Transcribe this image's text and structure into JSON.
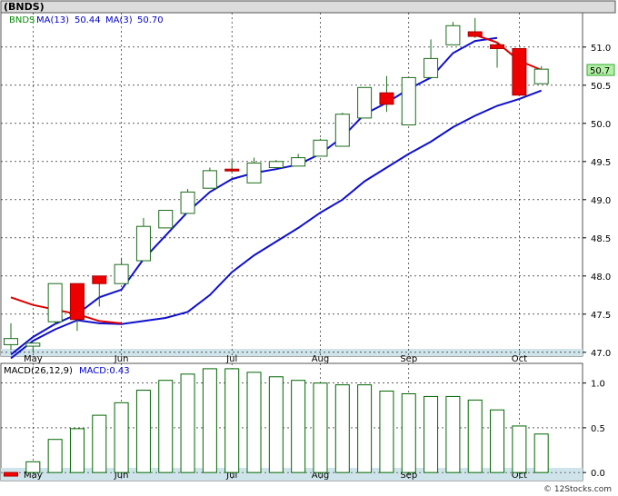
{
  "chart_data": [
    {
      "type": "candlestick",
      "title": "(BNDS)",
      "legend": [
        {
          "text": "BNDS",
          "color": "#0a8a0a"
        },
        {
          "text": "MA(13)",
          "color": "#0000cc"
        },
        {
          "text": "50.44",
          "color": "#0000cc"
        },
        {
          "text": "MA(3)",
          "color": "#0000cc"
        },
        {
          "text": "50.70",
          "color": "#0000cc"
        }
      ],
      "ylim": [
        46.95,
        51.45
      ],
      "yticks": [
        "47.0",
        "47.5",
        "48.0",
        "48.5",
        "49.0",
        "49.5",
        "50.0",
        "50.5",
        "51.0"
      ],
      "ytick_values": [
        47.0,
        47.5,
        48.0,
        48.5,
        49.0,
        49.5,
        50.0,
        50.5,
        51.0
      ],
      "xlabels": [
        {
          "label": "May",
          "index": 1
        },
        {
          "label": "Jun",
          "index": 5
        },
        {
          "label": "Jul",
          "index": 10
        },
        {
          "label": "Aug",
          "index": 14
        },
        {
          "label": "Sep",
          "index": 18
        },
        {
          "label": "Oct",
          "index": 23
        }
      ],
      "last_price_label": "50.7",
      "last_price_value": 50.7,
      "candles": [
        {
          "o": 47.1,
          "h": 47.38,
          "l": 47.03,
          "c": 47.18
        },
        {
          "o": 47.08,
          "h": 47.13,
          "l": 47.0,
          "c": 47.12
        },
        {
          "o": 47.4,
          "h": 47.9,
          "l": 47.36,
          "c": 47.9
        },
        {
          "o": 47.9,
          "h": 47.9,
          "l": 47.28,
          "c": 47.43
        },
        {
          "o": 48.0,
          "h": 48.0,
          "l": 47.6,
          "c": 47.9
        },
        {
          "o": 47.9,
          "h": 48.24,
          "l": 47.9,
          "c": 48.15
        },
        {
          "o": 48.2,
          "h": 48.76,
          "l": 48.2,
          "c": 48.65
        },
        {
          "o": 48.63,
          "h": 48.86,
          "l": 48.63,
          "c": 48.86
        },
        {
          "o": 48.82,
          "h": 49.14,
          "l": 48.82,
          "c": 49.1
        },
        {
          "o": 49.15,
          "h": 49.42,
          "l": 49.15,
          "c": 49.38
        },
        {
          "o": 49.4,
          "h": 49.52,
          "l": 49.35,
          "c": 49.38
        },
        {
          "o": 49.22,
          "h": 49.55,
          "l": 49.22,
          "c": 49.48
        },
        {
          "o": 49.42,
          "h": 49.52,
          "l": 49.42,
          "c": 49.5
        },
        {
          "o": 49.44,
          "h": 49.6,
          "l": 49.44,
          "c": 49.55
        },
        {
          "o": 49.57,
          "h": 49.8,
          "l": 49.57,
          "c": 49.78
        },
        {
          "o": 49.7,
          "h": 50.14,
          "l": 49.7,
          "c": 50.12
        },
        {
          "o": 50.07,
          "h": 50.47,
          "l": 50.07,
          "c": 50.47
        },
        {
          "o": 50.4,
          "h": 50.62,
          "l": 50.15,
          "c": 50.25
        },
        {
          "o": 49.98,
          "h": 50.6,
          "l": 49.98,
          "c": 50.6
        },
        {
          "o": 50.6,
          "h": 51.1,
          "l": 50.6,
          "c": 50.85
        },
        {
          "o": 51.03,
          "h": 51.33,
          "l": 51.03,
          "c": 51.28
        },
        {
          "o": 51.2,
          "h": 51.38,
          "l": 51.12,
          "c": 51.14
        },
        {
          "o": 51.03,
          "h": 51.07,
          "l": 50.73,
          "c": 50.98
        },
        {
          "o": 50.98,
          "h": 50.98,
          "l": 50.37,
          "c": 50.37
        },
        {
          "o": 50.52,
          "h": 50.75,
          "l": 50.52,
          "c": 50.71
        }
      ],
      "ma13_points": [
        {
          "i": 0,
          "v": 46.97
        },
        {
          "i": 1,
          "v": 47.2
        },
        {
          "i": 2,
          "v": 47.37
        },
        {
          "i": 3,
          "v": 47.5
        },
        {
          "i": 4,
          "v": 47.72
        },
        {
          "i": 5,
          "v": 47.82
        },
        {
          "i": 6,
          "v": 48.22
        },
        {
          "i": 7,
          "v": 48.53
        },
        {
          "i": 8,
          "v": 48.84
        },
        {
          "i": 9,
          "v": 49.1
        },
        {
          "i": 10,
          "v": 49.27
        },
        {
          "i": 11,
          "v": 49.35
        },
        {
          "i": 12,
          "v": 49.4
        },
        {
          "i": 13,
          "v": 49.46
        },
        {
          "i": 14,
          "v": 49.6
        },
        {
          "i": 15,
          "v": 49.82
        },
        {
          "i": 16,
          "v": 50.12
        },
        {
          "i": 17,
          "v": 50.27
        },
        {
          "i": 18,
          "v": 50.45
        },
        {
          "i": 19,
          "v": 50.6
        },
        {
          "i": 20,
          "v": 50.92
        },
        {
          "i": 21,
          "v": 51.08
        },
        {
          "i": 22,
          "v": 51.12
        }
      ],
      "ma3_points": [
        {
          "i": 0,
          "v": 47.72
        },
        {
          "i": 1,
          "v": 47.62
        },
        {
          "i": 2,
          "v": 47.56
        },
        {
          "i": 3,
          "v": 47.5
        },
        {
          "i": 4,
          "v": 47.41
        },
        {
          "i": 5,
          "v": 47.38
        },
        {
          "i": 21,
          "v": 51.16
        },
        {
          "i": 22,
          "v": 51.06
        },
        {
          "i": 23,
          "v": 50.82
        },
        {
          "i": 24,
          "v": 50.7
        }
      ],
      "ma_slow_points": [
        {
          "i": 0,
          "v": 46.92
        },
        {
          "i": 1,
          "v": 47.15
        },
        {
          "i": 2,
          "v": 47.3
        },
        {
          "i": 3,
          "v": 47.42
        },
        {
          "i": 4,
          "v": 47.38
        },
        {
          "i": 5,
          "v": 47.37
        },
        {
          "i": 6,
          "v": 47.41
        },
        {
          "i": 7,
          "v": 47.45
        },
        {
          "i": 8,
          "v": 47.53
        },
        {
          "i": 9,
          "v": 47.75
        },
        {
          "i": 10,
          "v": 48.05
        },
        {
          "i": 11,
          "v": 48.27
        },
        {
          "i": 12,
          "v": 48.45
        },
        {
          "i": 13,
          "v": 48.63
        },
        {
          "i": 14,
          "v": 48.83
        },
        {
          "i": 15,
          "v": 49.0
        },
        {
          "i": 16,
          "v": 49.24
        },
        {
          "i": 17,
          "v": 49.42
        },
        {
          "i": 18,
          "v": 49.6
        },
        {
          "i": 19,
          "v": 49.76
        },
        {
          "i": 20,
          "v": 49.95
        },
        {
          "i": 21,
          "v": 50.1
        },
        {
          "i": 22,
          "v": 50.23
        },
        {
          "i": 23,
          "v": 50.32
        },
        {
          "i": 24,
          "v": 50.43
        }
      ],
      "grid": true
    },
    {
      "type": "bar",
      "title": "MACD(26,12,9)",
      "legend": [
        {
          "text": "MACD(26,12,9)",
          "color": "#000000"
        },
        {
          "text": "MACD:0.43",
          "color": "#0000cc"
        }
      ],
      "ylim": [
        -0.09,
        1.22
      ],
      "yticks": [
        "0.0",
        "0.5",
        "1.0"
      ],
      "ytick_values": [
        0.0,
        0.5,
        1.0
      ],
      "xlabels": [
        {
          "label": "May",
          "index": 1
        },
        {
          "label": "Jun",
          "index": 5
        },
        {
          "label": "Jul",
          "index": 10
        },
        {
          "label": "Aug",
          "index": 14
        },
        {
          "label": "Sep",
          "index": 18
        },
        {
          "label": "Oct",
          "index": 23
        }
      ],
      "values": [
        -0.04,
        0.12,
        0.37,
        0.49,
        0.64,
        0.78,
        0.92,
        1.03,
        1.1,
        1.16,
        1.16,
        1.12,
        1.07,
        1.03,
        1.0,
        0.98,
        0.98,
        0.91,
        0.88,
        0.85,
        0.85,
        0.81,
        0.7,
        0.52,
        0.43
      ],
      "negative_color": "#ff0000",
      "positive_color": "#006600",
      "grid": true
    }
  ],
  "watermark": "© 12Stocks.com"
}
